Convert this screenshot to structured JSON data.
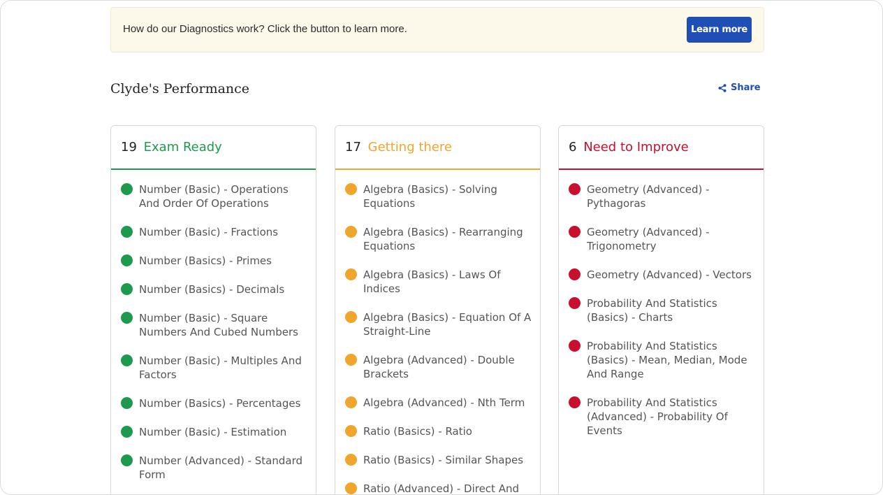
{
  "banner": {
    "text": "How do our Diagnostics work? Click the button to learn more.",
    "button_label": "Learn more"
  },
  "performance": {
    "title": "Clyde's Performance",
    "share_label": "Share"
  },
  "columns": [
    {
      "count": "19",
      "label": "Exam Ready",
      "color": "#1e9a4e",
      "items": [
        "Number (Basic) - Operations And Order Of Operations",
        "Number (Basic) - Fractions",
        "Number (Basics) - Primes",
        "Number (Basics) - Decimals",
        "Number (Basic) - Square Numbers And Cubed Numbers",
        "Number (Basic) - Multiples And Factors",
        "Number (Basics) - Percentages",
        "Number (Basic) - Estimation",
        "Number (Advanced) - Standard Form"
      ]
    },
    {
      "count": "17",
      "label": "Getting there",
      "color": "#f0a52c",
      "items": [
        "Algebra (Basics) - Solving Equations",
        "Algebra (Basics) - Rearranging Equations",
        "Algebra (Basics) - Laws Of Indices",
        "Algebra (Basics) - Equation Of A Straight-Line",
        "Algebra (Advanced) - Double Brackets",
        "Algebra (Advanced) - Nth Term",
        "Ratio (Basics) - Ratio",
        "Ratio (Basics) - Similar Shapes",
        "Ratio (Advanced) - Direct And"
      ]
    },
    {
      "count": "6",
      "label": "Need to Improve",
      "color": "#c8102e",
      "items": [
        "Geometry (Advanced) - Pythagoras",
        "Geometry (Advanced) - Trigonometry",
        "Geometry (Advanced) - Vectors",
        "Probability And Statistics (Basics) - Charts",
        "Probability And Statistics (Basics) - Mean, Median, Mode And Range",
        "Probability And Statistics (Advanced) - Probability Of Events"
      ]
    }
  ]
}
